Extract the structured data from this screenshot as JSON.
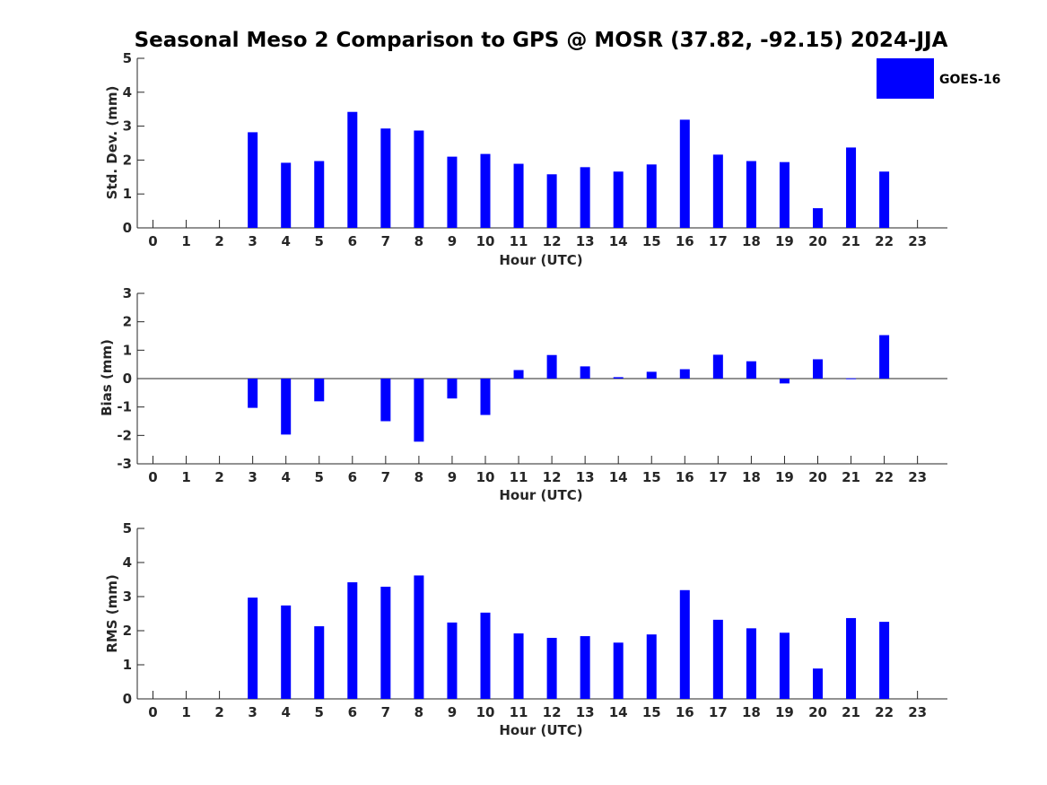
{
  "title": "Seasonal Meso 2 Comparison to GPS @ MOSR (37.82, -92.15) 2024-JJA",
  "legend": {
    "label": "GOES-16",
    "color": "#0000ff"
  },
  "chart_data": [
    {
      "type": "bar",
      "categories": [
        "0",
        "1",
        "2",
        "3",
        "4",
        "5",
        "6",
        "7",
        "8",
        "9",
        "10",
        "11",
        "12",
        "13",
        "14",
        "15",
        "16",
        "17",
        "18",
        "19",
        "20",
        "21",
        "22",
        "23"
      ],
      "series": [
        {
          "name": "GOES-16",
          "values": [
            null,
            null,
            null,
            2.82,
            1.92,
            1.97,
            3.42,
            2.93,
            2.87,
            2.1,
            2.18,
            1.89,
            1.58,
            1.79,
            1.66,
            1.87,
            3.19,
            2.16,
            1.97,
            1.94,
            0.58,
            2.37,
            1.66,
            null
          ]
        }
      ],
      "xlabel": "Hour (UTC)",
      "ylabel": "Std. Dev. (mm)",
      "ylim": [
        0,
        5
      ],
      "yticks": [
        0,
        1,
        2,
        3,
        4,
        5
      ]
    },
    {
      "type": "bar",
      "categories": [
        "0",
        "1",
        "2",
        "3",
        "4",
        "5",
        "6",
        "7",
        "8",
        "9",
        "10",
        "11",
        "12",
        "13",
        "14",
        "15",
        "16",
        "17",
        "18",
        "19",
        "20",
        "21",
        "22",
        "23"
      ],
      "series": [
        {
          "name": "GOES-16",
          "values": [
            null,
            null,
            null,
            -1.03,
            -1.97,
            -0.8,
            null,
            -1.5,
            -2.22,
            -0.7,
            -1.28,
            0.3,
            0.83,
            0.43,
            0.05,
            0.24,
            0.33,
            0.84,
            0.61,
            -0.17,
            0.68,
            0.01,
            1.53,
            null
          ]
        }
      ],
      "xlabel": "Hour (UTC)",
      "ylabel": "Bias (mm)",
      "ylim": [
        -3,
        3
      ],
      "yticks": [
        -3,
        -2,
        -1,
        0,
        1,
        2,
        3
      ],
      "zero_line": true
    },
    {
      "type": "bar",
      "categories": [
        "0",
        "1",
        "2",
        "3",
        "4",
        "5",
        "6",
        "7",
        "8",
        "9",
        "10",
        "11",
        "12",
        "13",
        "14",
        "15",
        "16",
        "17",
        "18",
        "19",
        "20",
        "21",
        "22",
        "23"
      ],
      "series": [
        {
          "name": "GOES-16",
          "values": [
            null,
            null,
            null,
            2.97,
            2.74,
            2.13,
            3.42,
            3.29,
            3.62,
            2.24,
            2.53,
            1.92,
            1.79,
            1.84,
            1.65,
            1.89,
            3.19,
            2.32,
            2.07,
            1.94,
            0.89,
            2.37,
            2.26,
            null
          ]
        }
      ],
      "xlabel": "Hour (UTC)",
      "ylabel": "RMS (mm)",
      "ylim": [
        0,
        5
      ],
      "yticks": [
        0,
        1,
        2,
        3,
        4,
        5
      ]
    }
  ]
}
